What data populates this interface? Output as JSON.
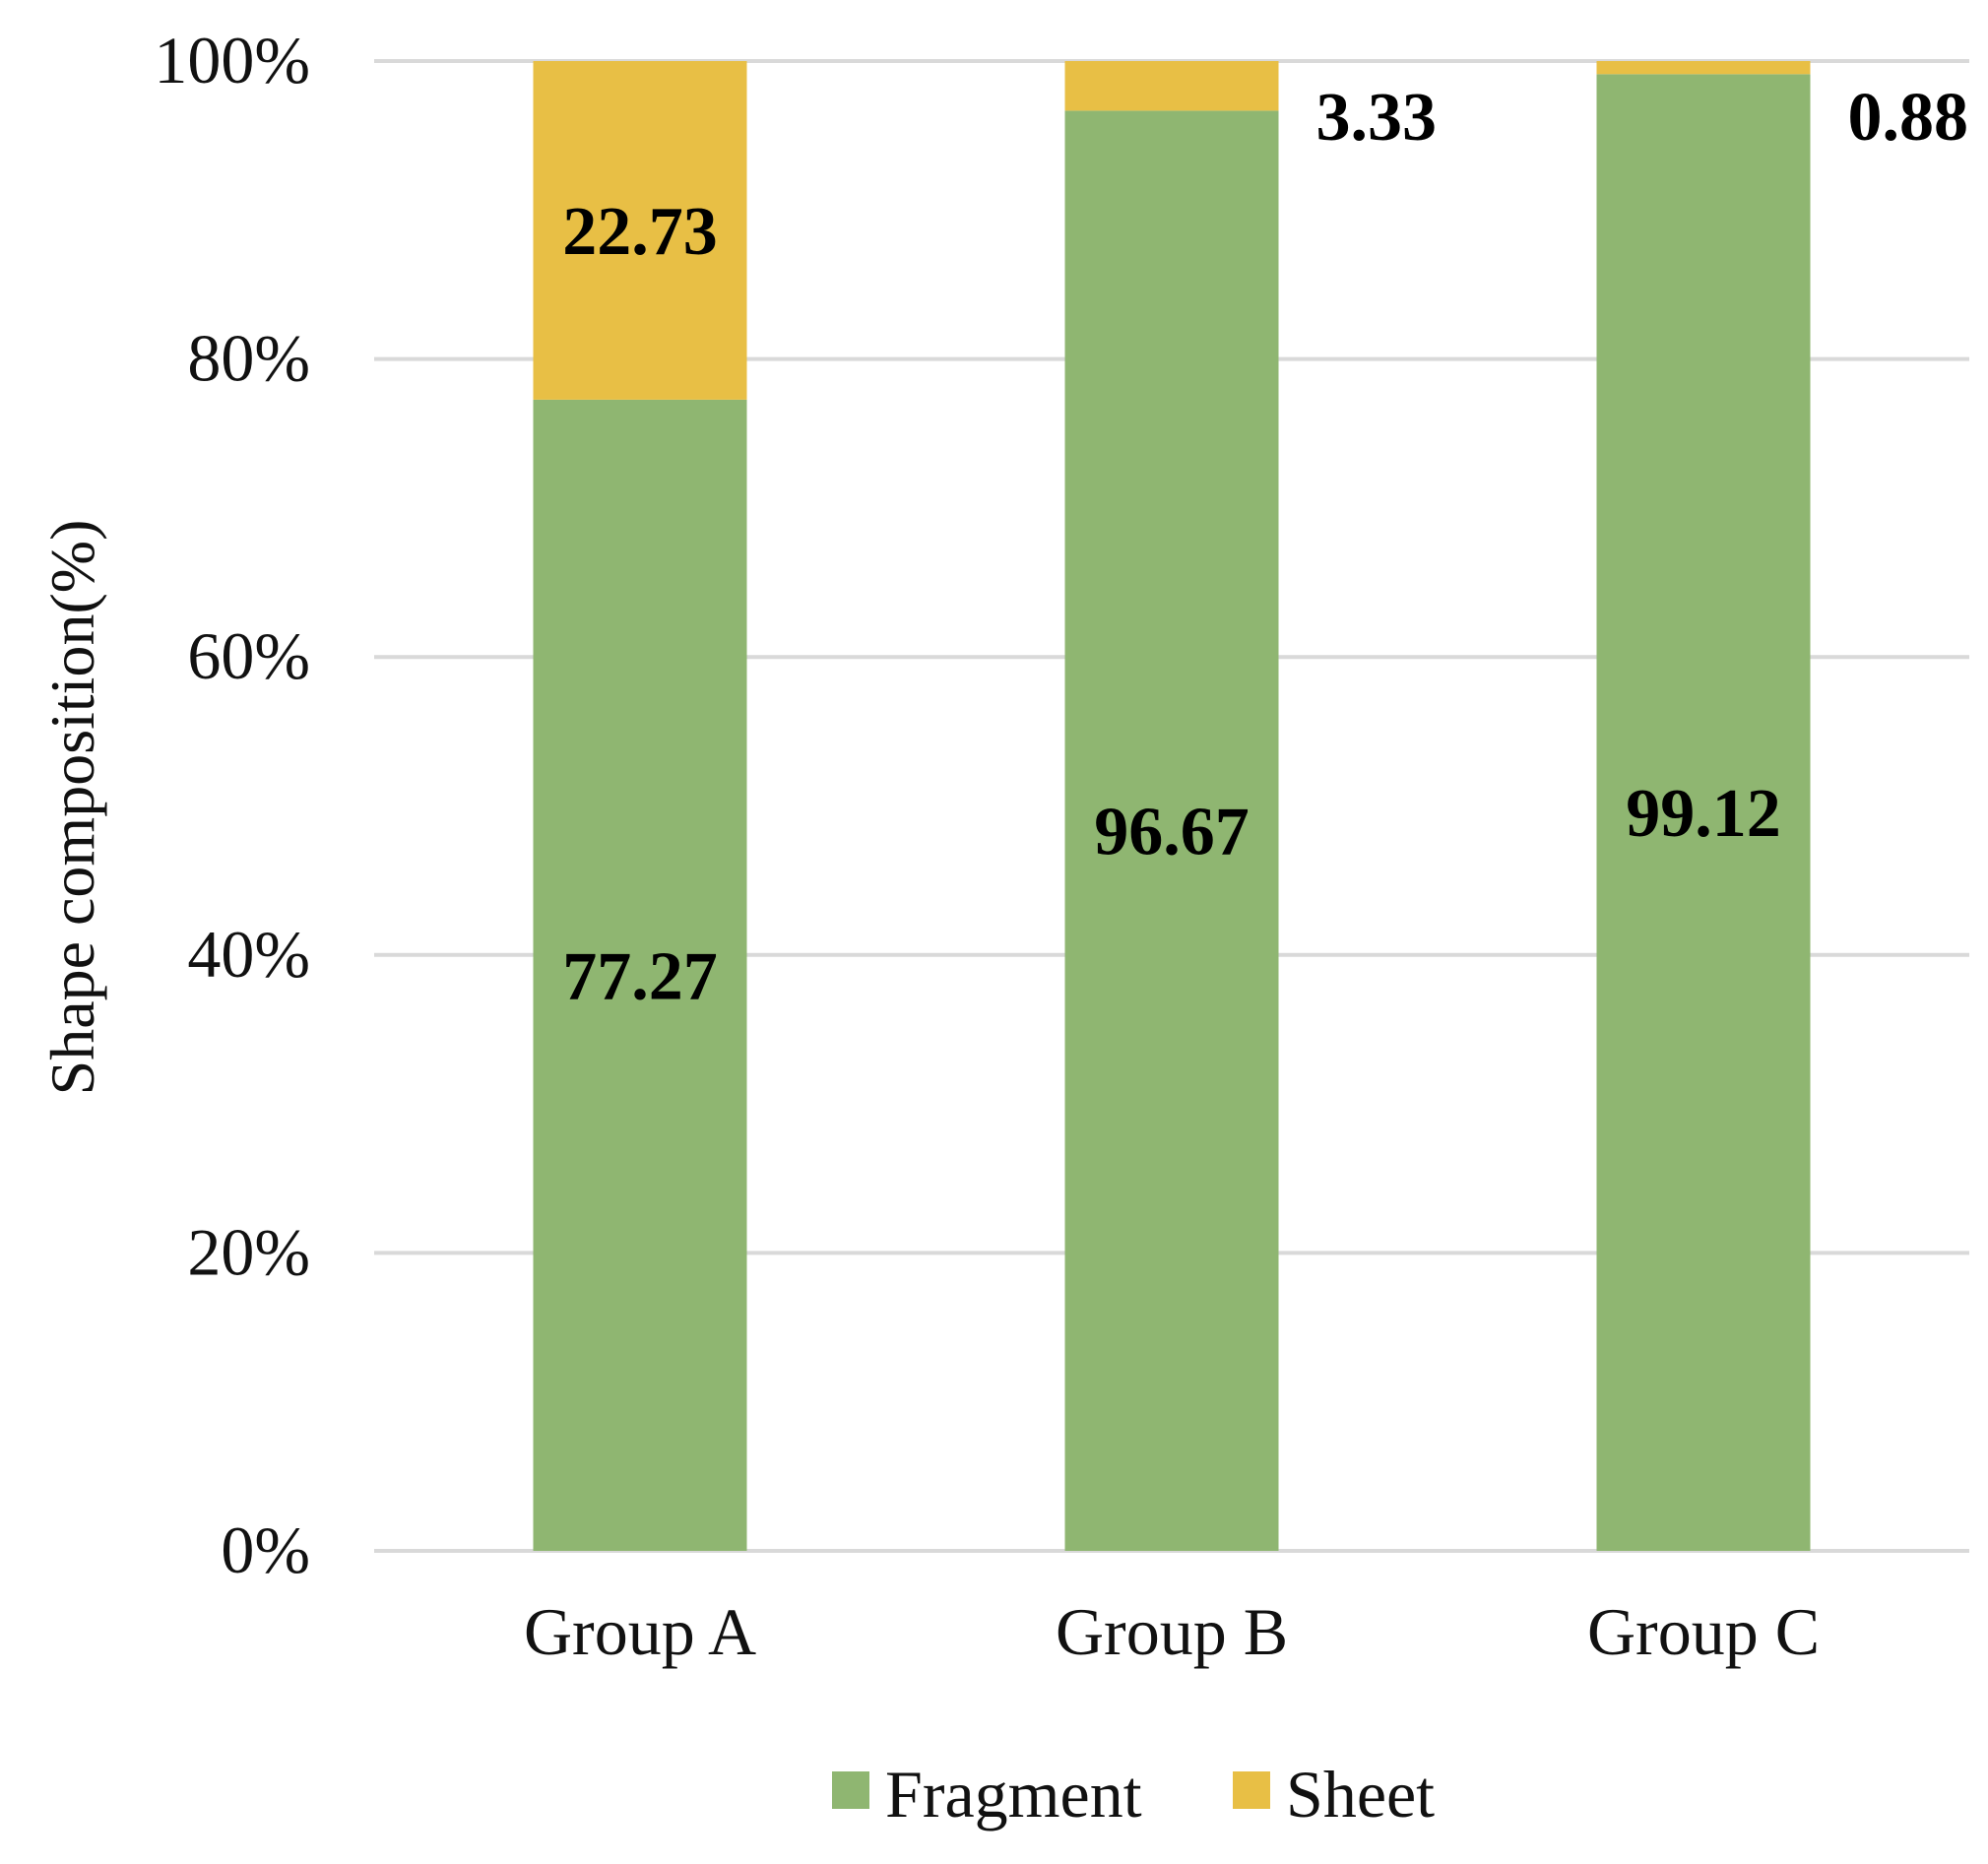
{
  "chart_data": {
    "type": "bar",
    "stacked": true,
    "title": "",
    "xlabel": "",
    "ylabel": "Shape composition(%)",
    "ylim": [
      0,
      100
    ],
    "yticks": [
      "0%",
      "20%",
      "40%",
      "60%",
      "80%",
      "100%"
    ],
    "ytick_values": [
      0,
      20,
      40,
      60,
      80,
      100
    ],
    "grid": true,
    "legend_position": "bottom-center",
    "categories": [
      "Group A",
      "Group B",
      "Group C"
    ],
    "series": [
      {
        "name": "Fragment",
        "color": "#8fb671",
        "values": [
          77.27,
          96.67,
          99.12
        ],
        "labels": [
          "77.27",
          "96.67",
          "99.12"
        ]
      },
      {
        "name": "Sheet",
        "color": "#e8bf45",
        "values": [
          22.73,
          3.33,
          0.88
        ],
        "labels": [
          "22.73",
          "3.33",
          "0.88"
        ]
      }
    ]
  }
}
